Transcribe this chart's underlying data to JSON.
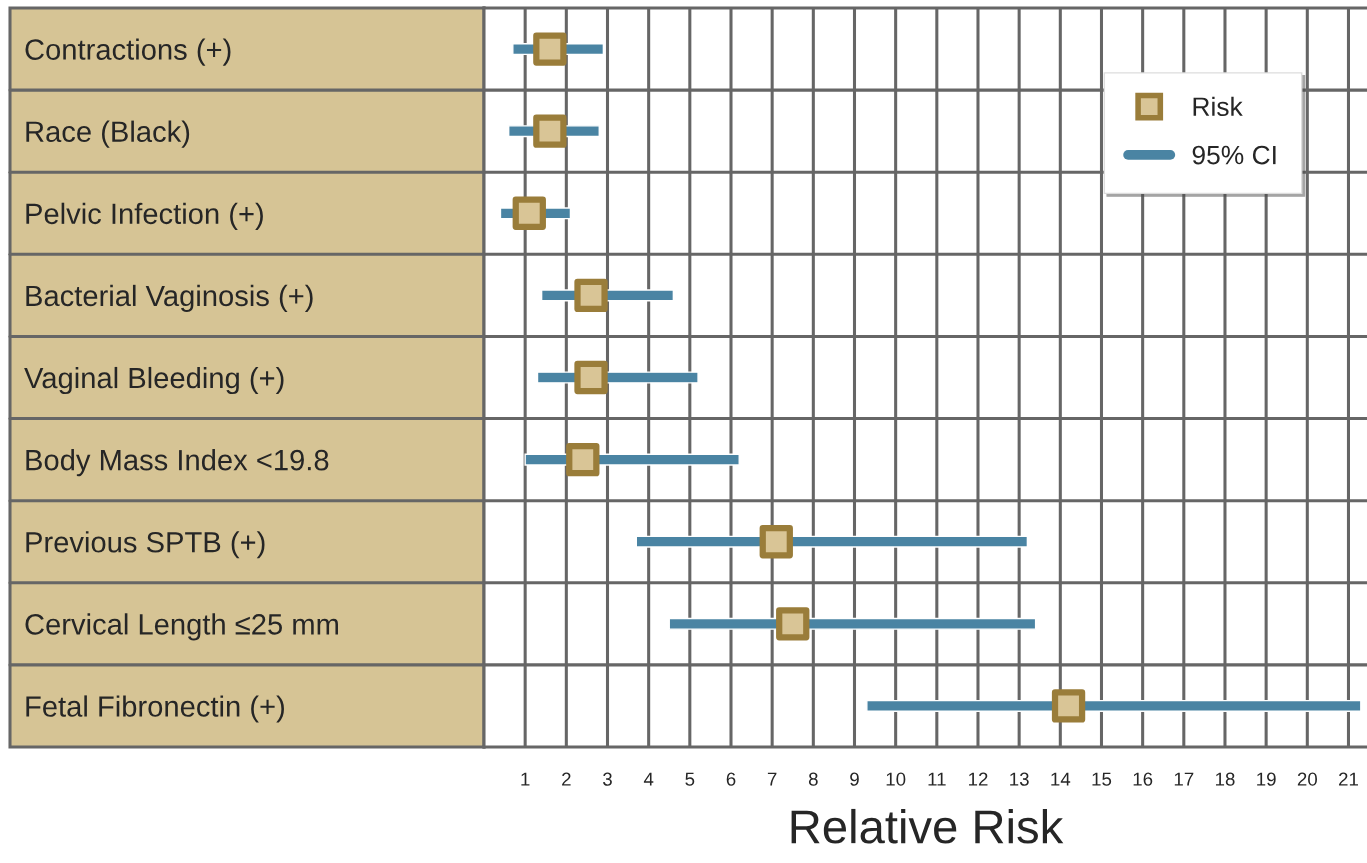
{
  "chart_data": {
    "type": "bar",
    "orientation": "horizontal",
    "xlabel": "Relative Risk",
    "categories": [
      "Contractions (+)",
      "Race (Black)",
      "Pelvic Infection (+)",
      "Bacterial Vaginosis (+)",
      "Vaginal Bleeding (+)",
      "Body Mass Index <19.8",
      "Previous SPTB (+)",
      "Cervical Length ≤25 mm",
      "Fetal Fibronectin (+)"
    ],
    "series": [
      {
        "name": "95% CI",
        "color": "#4a84a3",
        "base": [
          0.7,
          0.6,
          0.4,
          1.4,
          1.3,
          1.0,
          3.7,
          4.5,
          9.3
        ],
        "values": [
          2.2,
          2.2,
          1.7,
          3.2,
          3.9,
          5.2,
          9.5,
          8.9,
          12.0
        ]
      },
      {
        "name": "Risk",
        "type": "scatter",
        "color": "#9a7d3a",
        "marker": "square",
        "values": [
          1.6,
          1.6,
          1.1,
          2.6,
          2.6,
          2.4,
          7.1,
          7.5,
          14.2
        ]
      }
    ],
    "xlim": [
      0,
      21.45
    ],
    "xticks": [
      1,
      2,
      3,
      4,
      5,
      6,
      7,
      8,
      9,
      10,
      11,
      12,
      13,
      14,
      15,
      16,
      17,
      18,
      19,
      20,
      21
    ],
    "grid": true,
    "legend": "top right"
  }
}
